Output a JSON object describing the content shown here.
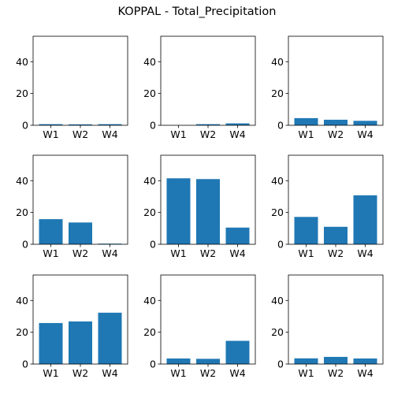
{
  "figure_title": "KOPPAL - Total_Precipitation",
  "chart_data": {
    "type": "bar",
    "title": "KOPPAL - Total_Precipitation",
    "ylim": [
      0,
      56
    ],
    "yticks": [
      0,
      20,
      40
    ],
    "categories": [
      "W1",
      "W2",
      "W4"
    ],
    "bar_color": "#1f77b4",
    "subplots": [
      {
        "values": [
          0.7,
          0.6,
          0.7
        ]
      },
      {
        "values": [
          0.0,
          0.7,
          1.2
        ]
      },
      {
        "values": [
          4.5,
          3.5,
          2.8
        ]
      },
      {
        "values": [
          15.8,
          13.7,
          0.4
        ]
      },
      {
        "values": [
          41.5,
          41.0,
          10.5
        ]
      },
      {
        "values": [
          17.2,
          11.0,
          30.8
        ]
      },
      {
        "values": [
          25.8,
          26.8,
          32.3
        ]
      },
      {
        "values": [
          3.5,
          3.3,
          14.6
        ]
      },
      {
        "values": [
          3.6,
          4.5,
          3.5
        ]
      }
    ]
  }
}
